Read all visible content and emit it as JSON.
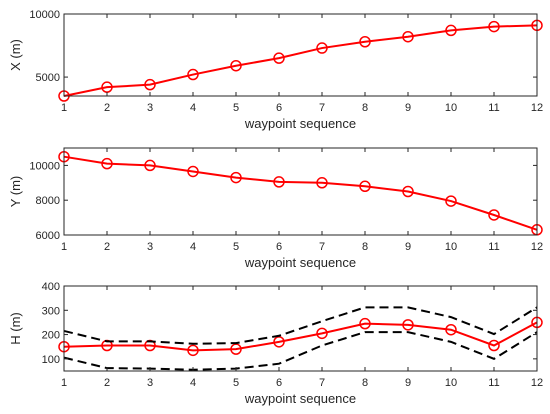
{
  "chart_data": [
    {
      "type": "line",
      "xlabel": "waypoint sequence",
      "ylabel": "X (m)",
      "x": [
        1,
        2,
        3,
        4,
        5,
        6,
        7,
        8,
        9,
        10,
        11,
        12
      ],
      "xlim": [
        1,
        12
      ],
      "ylim": [
        3500,
        10000
      ],
      "yticks": [
        5000,
        10000
      ],
      "series": [
        {
          "values": [
            3500,
            4200,
            4400,
            5200,
            5900,
            6500,
            7300,
            7800,
            8200,
            8700,
            9000,
            9100
          ],
          "color": "#ff0000",
          "marker": "circle"
        }
      ]
    },
    {
      "type": "line",
      "xlabel": "waypoint sequence",
      "ylabel": "Y (m)",
      "x": [
        1,
        2,
        3,
        4,
        5,
        6,
        7,
        8,
        9,
        10,
        11,
        12
      ],
      "xlim": [
        1,
        12
      ],
      "ylim": [
        6000,
        11000
      ],
      "yticks": [
        6000,
        8000,
        10000
      ],
      "series": [
        {
          "values": [
            10500,
            10100,
            10000,
            9650,
            9300,
            9050,
            9000,
            8800,
            8500,
            7950,
            7150,
            6300
          ],
          "color": "#ff0000",
          "marker": "circle"
        }
      ]
    },
    {
      "type": "line",
      "xlabel": "waypoint sequence",
      "ylabel": "H (m)",
      "x": [
        1,
        2,
        3,
        4,
        5,
        6,
        7,
        8,
        9,
        10,
        11,
        12
      ],
      "xlim": [
        1,
        12
      ],
      "ylim": [
        50,
        400
      ],
      "yticks": [
        100,
        200,
        300,
        400
      ],
      "series": [
        {
          "values": [
            150,
            155,
            155,
            135,
            140,
            170,
            205,
            245,
            240,
            220,
            155,
            250
          ],
          "color": "#ff0000",
          "marker": "circle"
        },
        {
          "values": [
            215,
            172,
            172,
            162,
            165,
            195,
            255,
            312,
            312,
            272,
            202,
            312
          ],
          "color": "#000000",
          "style": "dashed"
        },
        {
          "values": [
            105,
            62,
            60,
            55,
            60,
            80,
            155,
            210,
            210,
            170,
            100,
            210
          ],
          "color": "#000000",
          "style": "dashed"
        }
      ]
    }
  ]
}
